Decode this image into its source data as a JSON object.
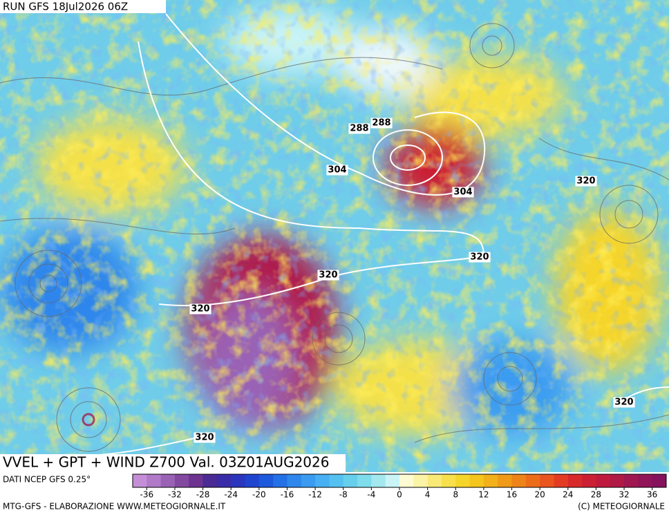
{
  "header": {
    "run": "RUN GFS 18Jul2026 06Z"
  },
  "map": {
    "title": "VVEL + GPT + WIND Z700 Val. 03Z01AUG2026",
    "contour_labels": [
      "288",
      "288",
      "304",
      "304",
      "320",
      "320",
      "320",
      "320",
      "320",
      "320"
    ]
  },
  "colorbar": {
    "source": "DATI NCEP GFS 0.25°",
    "range": [
      -38,
      38
    ],
    "ticks": [
      -36,
      -32,
      -28,
      -24,
      -20,
      -16,
      -12,
      -8,
      -4,
      0,
      4,
      8,
      12,
      16,
      20,
      24,
      28,
      32,
      36
    ],
    "colors": [
      "#c58fd8",
      "#b07ac8",
      "#9a62b5",
      "#83489f",
      "#6c3390",
      "#4a2a94",
      "#3a2ca8",
      "#2b36bd",
      "#1f45cf",
      "#1e58dc",
      "#2470e6",
      "#2f86ec",
      "#3a9bf0",
      "#47aff2",
      "#55c1f0",
      "#66d0ec",
      "#7edceb",
      "#a2e8ee",
      "#caf4f6",
      "#fdfbd2",
      "#fbf3a6",
      "#f9ea78",
      "#f8e04c",
      "#f6d52a",
      "#f4c51c",
      "#f2b01a",
      "#f09a18",
      "#ee8418",
      "#ec6c1a",
      "#ea541e",
      "#e43c22",
      "#d82a2a",
      "#cc1f33",
      "#bf1a3d",
      "#b01846",
      "#a01650",
      "#921458",
      "#86125e"
    ]
  },
  "footer": {
    "left": "MTG-GFS - ELABORAZIONE WWW.METEOGIORNALE.IT",
    "right": "(C) METEOGIORNALE"
  }
}
